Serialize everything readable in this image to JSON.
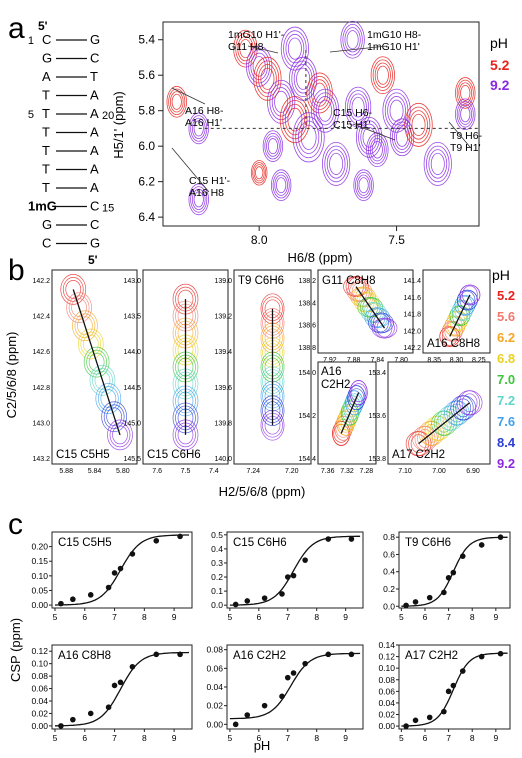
{
  "panels": {
    "a": {
      "label": "a",
      "sequence": {
        "five_prime_top": "5'",
        "five_prime_bottom": "5'",
        "rows": [
          {
            "num": "1",
            "left": "C",
            "right": "G",
            "rnum": ""
          },
          {
            "num": "",
            "left": "G",
            "right": "C",
            "rnum": ""
          },
          {
            "num": "",
            "left": "A",
            "right": "T",
            "rnum": ""
          },
          {
            "num": "",
            "left": "T",
            "right": "A",
            "rnum": ""
          },
          {
            "num": "5",
            "left": "T",
            "right": "A",
            "rnum": "20"
          },
          {
            "num": "",
            "left": "T",
            "right": "A",
            "rnum": ""
          },
          {
            "num": "",
            "left": "T",
            "right": "A",
            "rnum": ""
          },
          {
            "num": "",
            "left": "T",
            "right": "A",
            "rnum": ""
          },
          {
            "num": "",
            "left": "T",
            "right": "A",
            "rnum": ""
          },
          {
            "num": "",
            "left": "1mG",
            "right": "C",
            "rnum": "15"
          },
          {
            "num": "",
            "left": "G",
            "right": "C",
            "rnum": ""
          },
          {
            "num": "",
            "left": "C",
            "right": "G",
            "rnum": ""
          }
        ]
      },
      "spectrum": {
        "xlabel": "H6/8 (ppm)",
        "ylabel": "H5/1' (ppm)",
        "xticks": [
          "8.0",
          "7.5"
        ],
        "yticks": [
          "5.4",
          "5.6",
          "5.8",
          "6.0",
          "6.2",
          "6.4"
        ],
        "xlim": [
          8.35,
          7.2
        ],
        "ylim": [
          5.3,
          6.45
        ],
        "legend_title": "pH",
        "legend": [
          {
            "label": "5.2",
            "color": "#e8231e"
          },
          {
            "label": "9.2",
            "color": "#8a2be2"
          }
        ],
        "annotations": [
          {
            "text": [
              "1mG10 H1'-",
              "G11 H8"
            ]
          },
          {
            "text": [
              "1mG10 H8-",
              "1mG10 H1'"
            ]
          },
          {
            "text": [
              "A16 H8-",
              "A16 H1'"
            ]
          },
          {
            "text": [
              "C15 H6-",
              "C15 H1'"
            ]
          },
          {
            "text": [
              "T9 H6-",
              "T9 H1'"
            ]
          },
          {
            "text": [
              "C15 H1'-",
              "A16 H8"
            ]
          }
        ]
      }
    },
    "b": {
      "label": "b",
      "ylabel": "C2/5/6/8 (ppm)",
      "xlabel": "H2/5/6/8 (ppm)",
      "legend_title": "pH",
      "legend": [
        {
          "label": "5.2",
          "color": "#e8231e"
        },
        {
          "label": "5.6",
          "color": "#f07a6e"
        },
        {
          "label": "6.2",
          "color": "#f5a623"
        },
        {
          "label": "6.8",
          "color": "#e8d220"
        },
        {
          "label": "7.0",
          "color": "#3cc43c"
        },
        {
          "label": "7.2",
          "color": "#5fd6c8"
        },
        {
          "label": "7.6",
          "color": "#3fa0ef"
        },
        {
          "label": "8.4",
          "color": "#2b3fd6"
        },
        {
          "label": "9.2",
          "color": "#8a2be2"
        }
      ],
      "subpanels": [
        {
          "title": "C15 C5H5",
          "xticks": [
            "5.88",
            "5.84",
            "5.80"
          ],
          "yticks": [
            "142.2",
            "142.4",
            "142.6",
            "142.8",
            "143.0",
            "143.2"
          ]
        },
        {
          "title": "C15 C6H6",
          "xticks": [
            "7.6",
            "7.5",
            "7.4"
          ],
          "yticks": [
            "143.0",
            "143.5",
            "144.0",
            "144.5",
            "145.0",
            "145.5"
          ]
        },
        {
          "title": "T9 C6H6",
          "xticks": [
            "7.24",
            "7.20"
          ],
          "yticks": [
            "139.0",
            "139.2",
            "139.4",
            "139.6",
            "139.8",
            "140.0"
          ]
        },
        {
          "title": "G11 C8H8",
          "xticks": [
            "7.92",
            "7.88",
            "7.84",
            "7.80"
          ],
          "yticks": [
            "138.2",
            "138.4",
            "138.6",
            "138.8"
          ]
        },
        {
          "title": "A16 C8H8",
          "xticks": [
            "8.35",
            "8.30",
            "8.25"
          ],
          "yticks": [
            "141.4",
            "141.6",
            "141.8",
            "142.0",
            "142.2"
          ]
        },
        {
          "title": "A16 C2H2",
          "title_lines": [
            "A16",
            "C2H2"
          ],
          "xticks": [
            "7.36",
            "7.32",
            "7.28"
          ],
          "yticks": [
            "154.0",
            "154.2",
            "154.4"
          ]
        },
        {
          "title": "A17 C2H2",
          "xticks": [
            "7.10",
            "7.00",
            "6.90"
          ],
          "yticks": [
            "153.4",
            "153.6",
            "153.8"
          ]
        }
      ]
    },
    "c": {
      "label": "c",
      "xlabel": "pH",
      "ylabel": "CSP (ppm)"
    }
  },
  "chart_data": [
    {
      "type": "scatter",
      "title": "C15 C5H5",
      "x": [
        5.2,
        5.6,
        6.2,
        6.8,
        7.0,
        7.2,
        7.6,
        8.4,
        9.2
      ],
      "y": [
        0.005,
        0.02,
        0.035,
        0.06,
        0.11,
        0.125,
        0.175,
        0.22,
        0.235
      ],
      "ylim": [
        -0.01,
        0.25
      ],
      "xlim": [
        4.9,
        9.6
      ],
      "yticks": [
        "0.00",
        "0.05",
        "0.10",
        "0.15",
        "0.20"
      ],
      "xticks": [
        "5",
        "6",
        "7",
        "8",
        "9"
      ],
      "fit": {
        "type": "sigmoid",
        "max": 0.24,
        "pKa": 7.2,
        "slope": 1.3
      }
    },
    {
      "type": "scatter",
      "title": "C15 C6H6",
      "x": [
        5.2,
        5.6,
        6.2,
        6.8,
        7.0,
        7.2,
        7.6,
        8.4,
        9.2
      ],
      "y": [
        0.005,
        0.03,
        0.05,
        0.08,
        0.2,
        0.21,
        0.32,
        0.47,
        0.47
      ],
      "ylim": [
        -0.02,
        0.52
      ],
      "xlim": [
        4.9,
        9.6
      ],
      "yticks": [
        "0.0",
        "0.1",
        "0.2",
        "0.3",
        "0.4",
        "0.5"
      ],
      "xticks": [
        "5",
        "6",
        "7",
        "8",
        "9"
      ],
      "fit": {
        "type": "sigmoid",
        "max": 0.49,
        "pKa": 7.2,
        "slope": 1.3
      }
    },
    {
      "type": "scatter",
      "title": "T9 C6H6",
      "x": [
        5.2,
        5.6,
        6.2,
        6.8,
        7.0,
        7.2,
        7.6,
        8.4,
        9.2
      ],
      "y": [
        0.01,
        0.05,
        0.1,
        0.16,
        0.33,
        0.39,
        0.58,
        0.71,
        0.8
      ],
      "ylim": [
        -0.02,
        0.86
      ],
      "xlim": [
        4.9,
        9.6
      ],
      "yticks": [
        "0.0",
        "0.2",
        "0.4",
        "0.6",
        "0.8"
      ],
      "xticks": [
        "5",
        "6",
        "7",
        "8",
        "9"
      ],
      "fit": {
        "type": "sigmoid",
        "max": 0.8,
        "pKa": 7.2,
        "slope": 1.3
      }
    },
    {
      "type": "scatter",
      "title": "A16 C8H8",
      "x": [
        5.2,
        5.6,
        6.2,
        6.8,
        7.0,
        7.2,
        7.6,
        8.4,
        9.2
      ],
      "y": [
        0.0,
        0.01,
        0.02,
        0.03,
        0.065,
        0.07,
        0.095,
        0.115,
        0.115
      ],
      "ylim": [
        -0.005,
        0.13
      ],
      "xlim": [
        4.9,
        9.6
      ],
      "yticks": [
        "0.00",
        "0.02",
        "0.04",
        "0.06",
        "0.08",
        "0.10",
        "0.12"
      ],
      "xticks": [
        "5",
        "6",
        "7",
        "8",
        "9"
      ],
      "fit": {
        "type": "sigmoid",
        "max": 0.118,
        "pKa": 7.2,
        "slope": 1.3
      }
    },
    {
      "type": "scatter",
      "title": "A16 C2H2",
      "x": [
        5.2,
        5.6,
        6.2,
        6.8,
        7.0,
        7.2,
        7.6,
        8.4,
        9.2
      ],
      "y": [
        0.0,
        0.01,
        0.02,
        0.03,
        0.05,
        0.055,
        0.065,
        0.075,
        0.075
      ],
      "ylim": [
        -0.005,
        0.085
      ],
      "xlim": [
        4.9,
        9.6
      ],
      "yticks": [
        "0.00",
        "0.02",
        "0.04",
        "0.06",
        "0.08"
      ],
      "xticks": [
        "5",
        "6",
        "7",
        "8",
        "9"
      ],
      "fit": {
        "type": "sigmoid",
        "max": 0.076,
        "pKa": 7.1,
        "slope": 1.3,
        "base": 0.006
      }
    },
    {
      "type": "scatter",
      "title": "A17 C2H2",
      "x": [
        5.2,
        5.6,
        6.2,
        6.8,
        7.0,
        7.2,
        7.6,
        8.4,
        9.2
      ],
      "y": [
        0.0,
        0.01,
        0.015,
        0.025,
        0.06,
        0.07,
        0.095,
        0.12,
        0.125
      ],
      "ylim": [
        -0.005,
        0.14
      ],
      "xlim": [
        4.9,
        9.6
      ],
      "yticks": [
        "0.00",
        "0.02",
        "0.04",
        "0.06",
        "0.08",
        "0.10",
        "0.12",
        "0.14"
      ],
      "xticks": [
        "5",
        "6",
        "7",
        "8",
        "9"
      ],
      "fit": {
        "type": "sigmoid",
        "max": 0.126,
        "pKa": 7.2,
        "slope": 1.3
      }
    }
  ]
}
